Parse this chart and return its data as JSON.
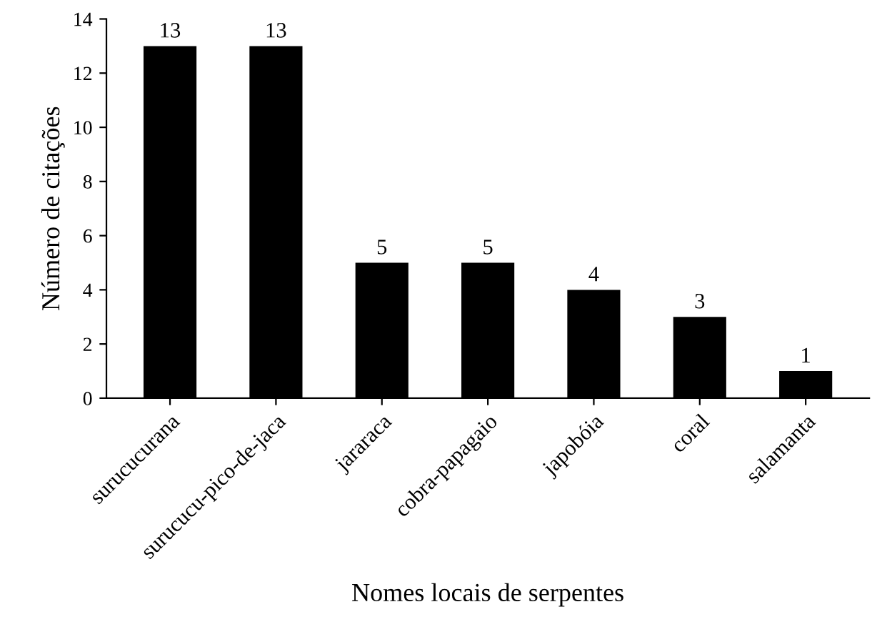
{
  "chart_data": {
    "type": "bar",
    "categories": [
      "surucucurana",
      "surucucu-pico-de-jaca",
      "jararaca",
      "cobra-papagaio",
      "japobóia",
      "coral",
      "salamanta"
    ],
    "values": [
      13,
      13,
      5,
      5,
      4,
      3,
      1
    ],
    "color": "#000000",
    "xlabel": "Nomes locais de serpentes",
    "ylabel": "Número de citações",
    "ylim": [
      0,
      14
    ],
    "yticks": [
      0,
      2,
      4,
      6,
      8,
      10,
      12,
      14
    ],
    "data_labels": true,
    "grid": false,
    "legend": false
  }
}
